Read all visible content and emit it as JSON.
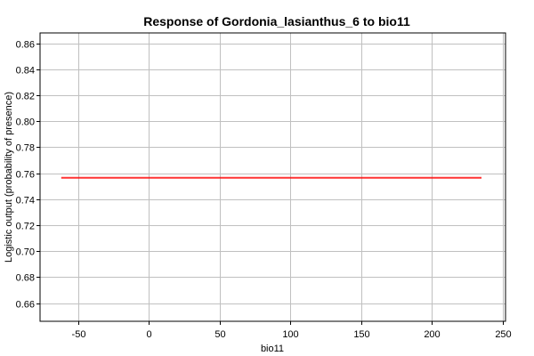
{
  "chart_data": {
    "type": "line",
    "title": "Response of Gordonia_lasianthus_6 to bio11",
    "xlabel": "bio11",
    "ylabel": "Logistic output (probability of presence)",
    "xlim": [
      -77,
      252
    ],
    "ylim": [
      0.646,
      0.868
    ],
    "x_ticks": [
      -50,
      0,
      50,
      100,
      150,
      200,
      250
    ],
    "x_tick_labels": [
      "-50",
      "0",
      "50",
      "100",
      "150",
      "200",
      "250"
    ],
    "y_ticks": [
      0.66,
      0.68,
      0.7,
      0.72,
      0.74,
      0.76,
      0.78,
      0.8,
      0.82,
      0.84,
      0.86
    ],
    "y_tick_labels": [
      "0.66",
      "0.68",
      "0.70",
      "0.72",
      "0.74",
      "0.76",
      "0.78",
      "0.80",
      "0.82",
      "0.84",
      "0.86"
    ],
    "grid": true,
    "series": [
      {
        "color": "#ff0000",
        "x": [
          -62,
          235
        ],
        "y": [
          0.7565,
          0.7565
        ]
      }
    ],
    "colors": {
      "plot_background": "#ffffff",
      "grid": "#c0c0c0",
      "frame": "#000000"
    }
  }
}
